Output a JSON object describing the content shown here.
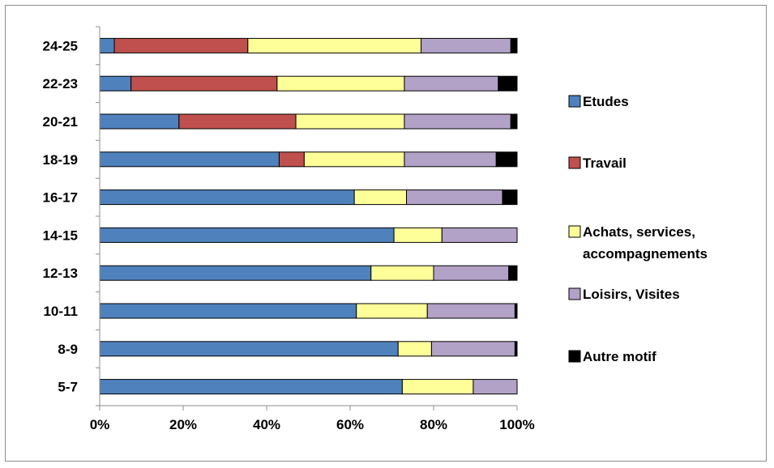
{
  "chart_data": {
    "type": "bar",
    "orientation": "horizontal",
    "stacked": "percent",
    "categories": [
      "5-7",
      "8-9",
      "10-11",
      "12-13",
      "14-15",
      "16-17",
      "18-19",
      "20-21",
      "22-23",
      "24-25"
    ],
    "series": [
      {
        "name": "Etudes",
        "color": "#4f81bd",
        "values": [
          72.5,
          71.5,
          61.5,
          65.0,
          70.5,
          61.0,
          43.0,
          19.0,
          7.5,
          3.5
        ]
      },
      {
        "name": "Travail",
        "color": "#c0504d",
        "values": [
          0,
          0,
          0,
          0,
          0,
          0,
          6.0,
          28.0,
          35.0,
          32.0
        ]
      },
      {
        "name": "Achats, services, accompagnements",
        "color": "#ffff99",
        "values": [
          17.0,
          8.0,
          17.0,
          15.0,
          11.5,
          12.5,
          24.0,
          26.0,
          30.5,
          41.5
        ]
      },
      {
        "name": "Loisirs, Visites",
        "color": "#b3a2c7",
        "values": [
          10.5,
          20.0,
          21.0,
          18.0,
          18.0,
          23.0,
          22.0,
          25.5,
          22.5,
          21.5
        ]
      },
      {
        "name": "Autre motif",
        "color": "#000000",
        "values": [
          0,
          0.5,
          0.5,
          2.0,
          0,
          3.5,
          5.0,
          1.5,
          4.5,
          1.5
        ]
      }
    ],
    "xlim": [
      0,
      100
    ],
    "xticks": [
      "0%",
      "20%",
      "40%",
      "60%",
      "80%",
      "100%"
    ],
    "grid": false,
    "legend_position": "right",
    "title": "",
    "xlabel": "",
    "ylabel": ""
  }
}
